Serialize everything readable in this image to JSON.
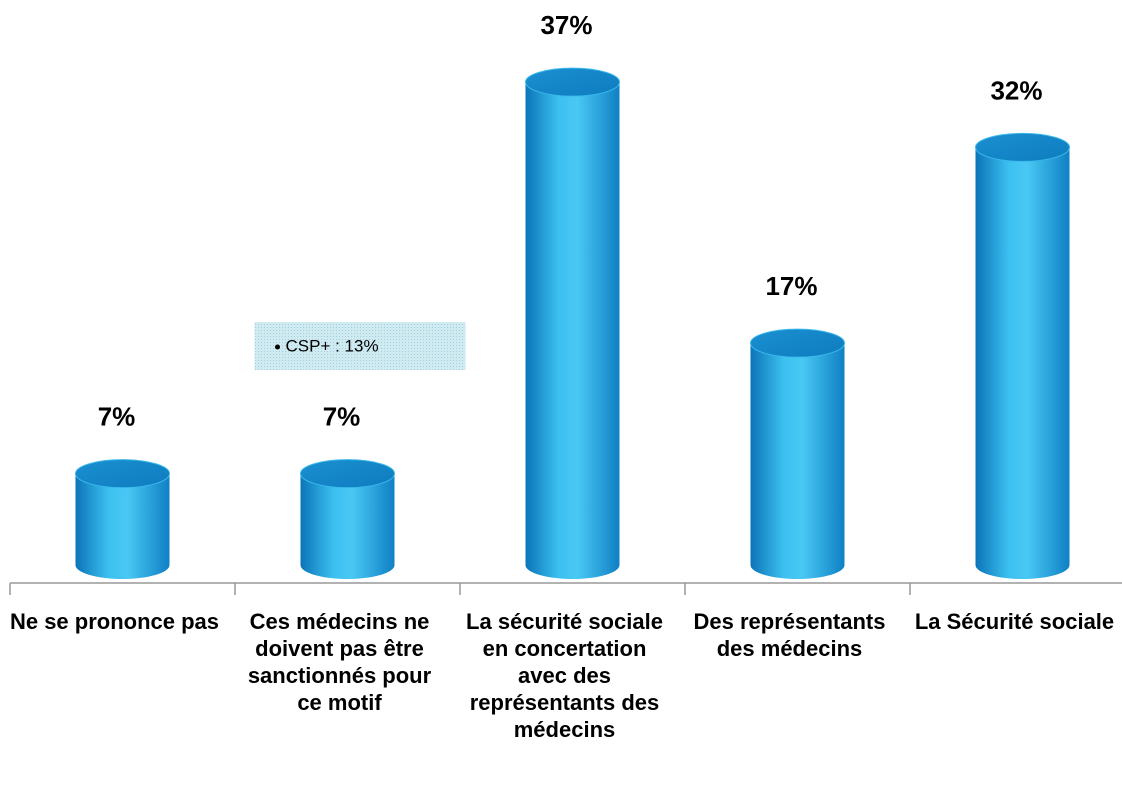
{
  "chart_data": {
    "type": "bar",
    "categories": [
      "Ne se prononce pas",
      "Ces médecins ne doivent pas être sanctionnés pour ce motif",
      "La sécurité sociale en concertation avec des représentants des médecins",
      "Des représentants des médecins",
      "La Sécurité sociale"
    ],
    "values": [
      7,
      7,
      37,
      17,
      32
    ],
    "value_labels": [
      "7%",
      "7%",
      "37%",
      "17%",
      "32%"
    ],
    "color": "#1b9ad6",
    "annotations": [
      {
        "text": "CSP+ : 13%",
        "category": 1
      }
    ]
  }
}
